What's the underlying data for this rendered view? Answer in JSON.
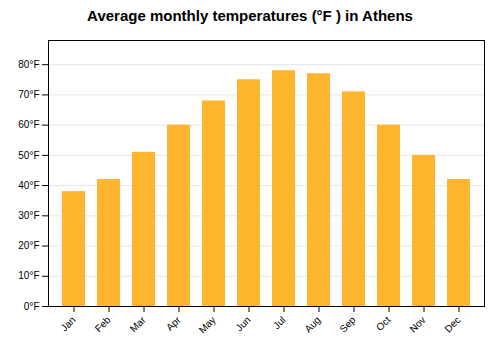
{
  "chart_data": {
    "type": "bar",
    "title": "Average monthly temperatures (°F ) in Athens",
    "categories": [
      "Jan",
      "Feb",
      "Mar",
      "Apr",
      "May",
      "Jun",
      "Jul",
      "Aug",
      "Sep",
      "Oct",
      "Nov",
      "Dec"
    ],
    "values": [
      38,
      42,
      51,
      60,
      68,
      75,
      78,
      77,
      71,
      60,
      50,
      42
    ],
    "color": "#FFB52E",
    "ylim": [
      0,
      88
    ],
    "yticks": [
      {
        "value": 0,
        "label": "0°F"
      },
      {
        "value": 10,
        "label": "10°F"
      },
      {
        "value": 20,
        "label": "20°F"
      },
      {
        "value": 30,
        "label": "30°F"
      },
      {
        "value": 40,
        "label": "40°F"
      },
      {
        "value": 50,
        "label": "50°F"
      },
      {
        "value": 60,
        "label": "60°F"
      },
      {
        "value": 70,
        "label": "70°F"
      },
      {
        "value": 80,
        "label": "80°F"
      }
    ],
    "grid": true
  }
}
